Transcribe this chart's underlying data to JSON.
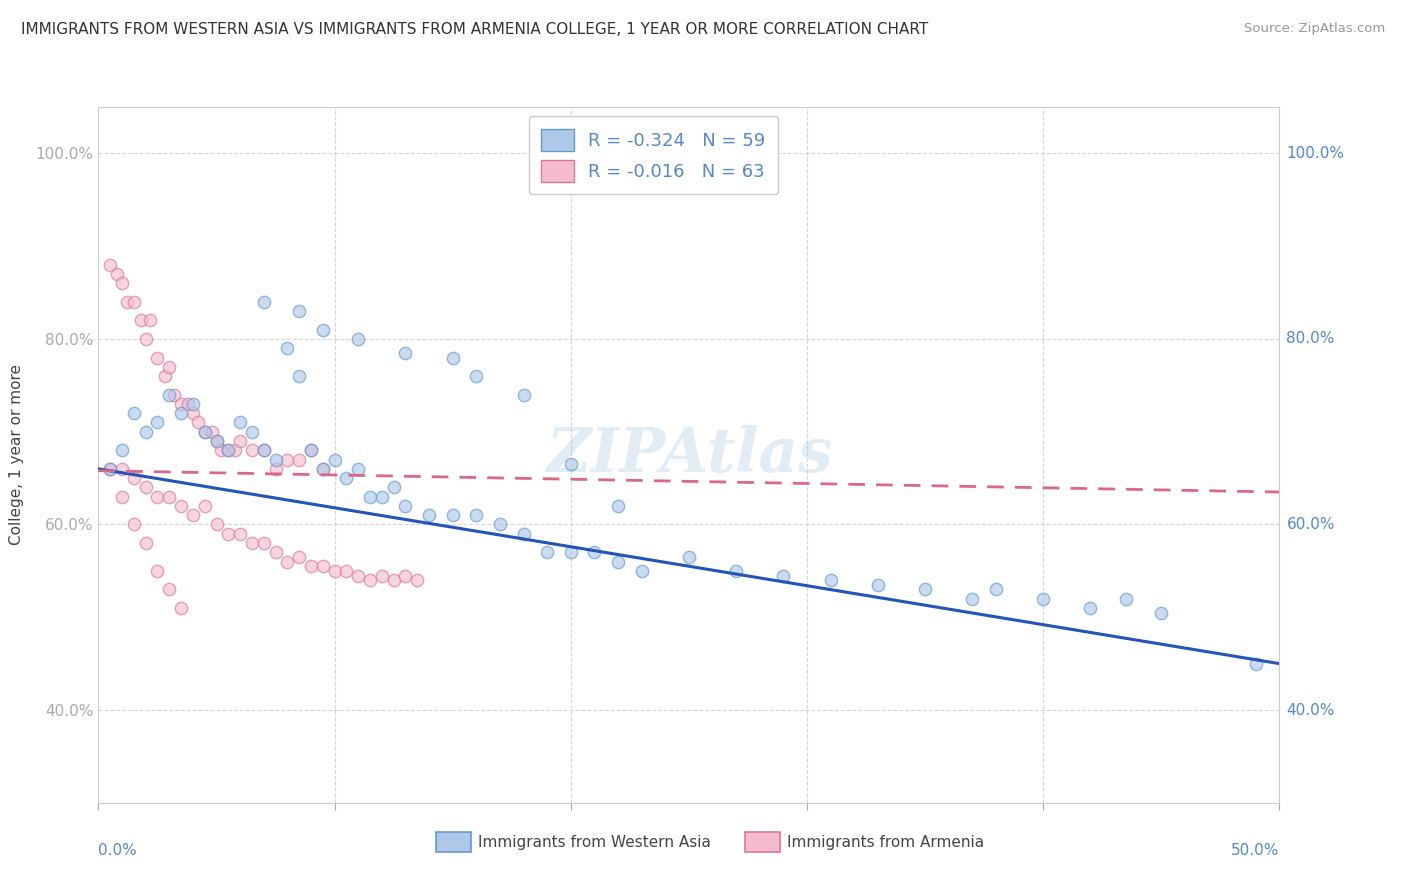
{
  "title": "IMMIGRANTS FROM WESTERN ASIA VS IMMIGRANTS FROM ARMENIA COLLEGE, 1 YEAR OR MORE CORRELATION CHART",
  "source": "Source: ZipAtlas.com",
  "ylabel": "College, 1 year or more",
  "legend_label1": "Immigrants from Western Asia",
  "legend_label2": "Immigrants from Armenia",
  "xlim": [
    0.0,
    0.5
  ],
  "ylim": [
    0.3,
    1.05
  ],
  "xtick_vals": [
    0.0,
    0.1,
    0.2,
    0.3,
    0.4,
    0.5
  ],
  "ytick_vals": [
    0.4,
    0.6,
    0.8,
    1.0
  ],
  "ytick_labels_left": [
    "40.0%",
    "60.0%",
    "80.0%",
    "100.0%"
  ],
  "ytick_labels_right": [
    "40.0%",
    "60.0%",
    "80.0%",
    "100.0%"
  ],
  "xtick_labels_left": "0.0%",
  "xtick_labels_right": "50.0%",
  "grid_color": "#cccccc",
  "watermark": "ZIPAtlas",
  "legend_R1": "-0.324",
  "legend_N1": "59",
  "legend_R2": "-0.016",
  "legend_N2": "63",
  "series1_facecolor": "#adc8e8",
  "series1_edgecolor": "#6699cc",
  "series2_facecolor": "#f5bcd0",
  "series2_edgecolor": "#dd7799",
  "line1_color": "#2255bb",
  "line2_color": "#dd6688",
  "tick_label_color": "#5588cc",
  "scatter_size": 80,
  "scatter_alpha": 0.65,
  "western_asia_x": [
    0.005,
    0.01,
    0.015,
    0.02,
    0.025,
    0.03,
    0.035,
    0.04,
    0.045,
    0.05,
    0.055,
    0.06,
    0.065,
    0.07,
    0.075,
    0.08,
    0.085,
    0.09,
    0.095,
    0.1,
    0.105,
    0.11,
    0.115,
    0.12,
    0.125,
    0.13,
    0.14,
    0.15,
    0.16,
    0.17,
    0.18,
    0.19,
    0.2,
    0.21,
    0.22,
    0.23,
    0.25,
    0.27,
    0.29,
    0.31,
    0.33,
    0.37,
    0.4,
    0.42,
    0.45,
    0.49,
    0.07,
    0.085,
    0.095,
    0.11,
    0.13,
    0.15,
    0.16,
    0.18,
    0.2,
    0.22,
    0.35,
    0.38,
    0.435
  ],
  "western_asia_y": [
    0.66,
    0.68,
    0.72,
    0.7,
    0.71,
    0.74,
    0.72,
    0.73,
    0.7,
    0.69,
    0.68,
    0.71,
    0.7,
    0.68,
    0.67,
    0.79,
    0.76,
    0.68,
    0.66,
    0.67,
    0.65,
    0.66,
    0.63,
    0.63,
    0.64,
    0.62,
    0.61,
    0.61,
    0.61,
    0.6,
    0.59,
    0.57,
    0.57,
    0.57,
    0.56,
    0.55,
    0.565,
    0.55,
    0.545,
    0.54,
    0.535,
    0.52,
    0.52,
    0.51,
    0.505,
    0.45,
    0.84,
    0.83,
    0.81,
    0.8,
    0.785,
    0.78,
    0.76,
    0.74,
    0.665,
    0.62,
    0.53,
    0.53,
    0.52
  ],
  "armenia_x": [
    0.005,
    0.008,
    0.01,
    0.012,
    0.015,
    0.018,
    0.02,
    0.022,
    0.025,
    0.028,
    0.03,
    0.032,
    0.035,
    0.038,
    0.04,
    0.042,
    0.045,
    0.048,
    0.05,
    0.052,
    0.055,
    0.058,
    0.06,
    0.065,
    0.07,
    0.075,
    0.08,
    0.085,
    0.09,
    0.095,
    0.01,
    0.015,
    0.02,
    0.025,
    0.03,
    0.035,
    0.04,
    0.045,
    0.05,
    0.055,
    0.06,
    0.065,
    0.07,
    0.075,
    0.08,
    0.085,
    0.09,
    0.095,
    0.1,
    0.105,
    0.11,
    0.115,
    0.12,
    0.125,
    0.13,
    0.135,
    0.005,
    0.01,
    0.015,
    0.02,
    0.025,
    0.03,
    0.035
  ],
  "armenia_y": [
    0.88,
    0.87,
    0.86,
    0.84,
    0.84,
    0.82,
    0.8,
    0.82,
    0.78,
    0.76,
    0.77,
    0.74,
    0.73,
    0.73,
    0.72,
    0.71,
    0.7,
    0.7,
    0.69,
    0.68,
    0.68,
    0.68,
    0.69,
    0.68,
    0.68,
    0.66,
    0.67,
    0.67,
    0.68,
    0.66,
    0.66,
    0.65,
    0.64,
    0.63,
    0.63,
    0.62,
    0.61,
    0.62,
    0.6,
    0.59,
    0.59,
    0.58,
    0.58,
    0.57,
    0.56,
    0.565,
    0.555,
    0.555,
    0.55,
    0.55,
    0.545,
    0.54,
    0.545,
    0.54,
    0.545,
    0.54,
    0.66,
    0.63,
    0.6,
    0.58,
    0.55,
    0.53,
    0.51
  ],
  "line1_x0": 0.0,
  "line1_y0": 0.66,
  "line1_x1": 0.5,
  "line1_y1": 0.45,
  "line2_x0": 0.0,
  "line2_y0": 0.658,
  "line2_x1": 0.5,
  "line2_y1": 0.635
}
